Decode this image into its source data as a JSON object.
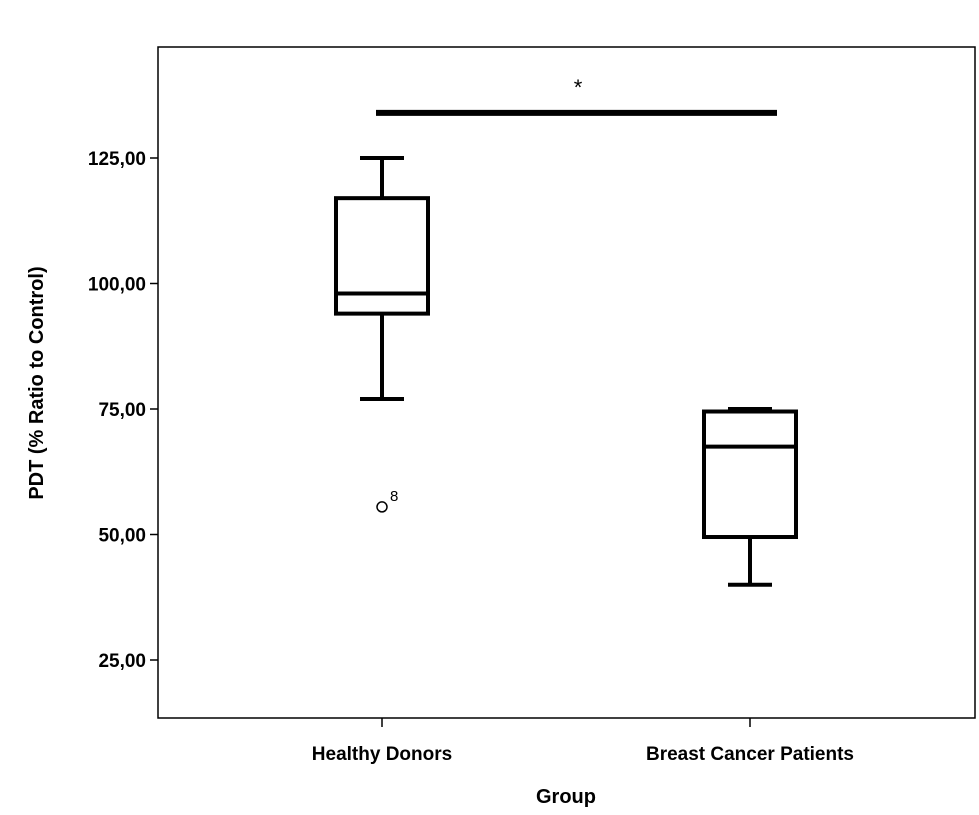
{
  "chart_data": {
    "type": "boxplot",
    "xlabel": "Group",
    "ylabel": "PDT (% Ratio to Control)",
    "ylim": [
      12,
      145
    ],
    "yticks": [
      25,
      50,
      75,
      100,
      125
    ],
    "ytick_labels": [
      "25,00",
      "50,00",
      "75,00",
      "100,00",
      "125,00"
    ],
    "categories": [
      "Healthy Donors",
      "Breast Cancer Patients"
    ],
    "boxes": [
      {
        "category": "Healthy Donors",
        "whisker_low": 77,
        "q1": 94,
        "median": 98,
        "q3": 117,
        "whisker_high": 125,
        "outliers": [
          {
            "value": 55.5,
            "label": "8"
          }
        ]
      },
      {
        "category": "Breast Cancer Patients",
        "whisker_low": 40,
        "q1": 49.5,
        "median": 67.5,
        "q3": 74.5,
        "whisker_high": 75,
        "outliers": []
      }
    ],
    "significance": {
      "from": "Healthy Donors",
      "to": "Breast Cancer Patients",
      "value": 134,
      "label": "*"
    },
    "grid": false,
    "legend": "none"
  }
}
